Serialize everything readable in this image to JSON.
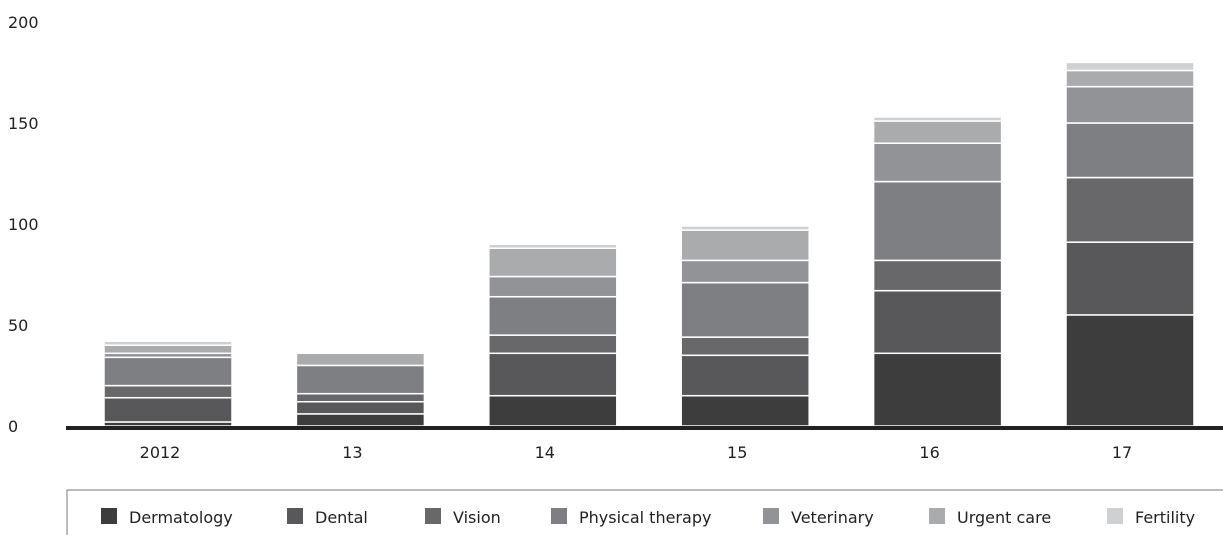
{
  "chart_data": {
    "type": "bar",
    "stacked": true,
    "title": "",
    "xlabel": "",
    "ylabel": "",
    "ylim": [
      0,
      200
    ],
    "yticks": [
      0,
      50,
      100,
      150,
      200
    ],
    "grid": false,
    "legend_position": "bottom",
    "categories": [
      "2012",
      "13",
      "14",
      "15",
      "16",
      "17"
    ],
    "series": [
      {
        "name": "Dermatology",
        "color": "#3d3d3d",
        "values": [
          2,
          6,
          15,
          15,
          36,
          55
        ]
      },
      {
        "name": "Dental",
        "color": "#58585a",
        "values": [
          12,
          6,
          21,
          20,
          31,
          36
        ]
      },
      {
        "name": "Vision",
        "color": "#68686b",
        "values": [
          6,
          4,
          9,
          9,
          15,
          32
        ]
      },
      {
        "name": "Physical therapy",
        "color": "#7e7f82",
        "values": [
          14,
          14,
          19,
          27,
          39,
          27
        ]
      },
      {
        "name": "Veterinary",
        "color": "#929396",
        "values": [
          2,
          0,
          10,
          11,
          19,
          18
        ]
      },
      {
        "name": "Urgent care",
        "color": "#aaabad",
        "values": [
          4,
          6,
          14,
          15,
          11,
          8
        ]
      },
      {
        "name": "Fertility",
        "color": "#cfd0d2",
        "values": [
          2,
          0,
          2,
          2,
          2,
          4
        ]
      }
    ]
  }
}
